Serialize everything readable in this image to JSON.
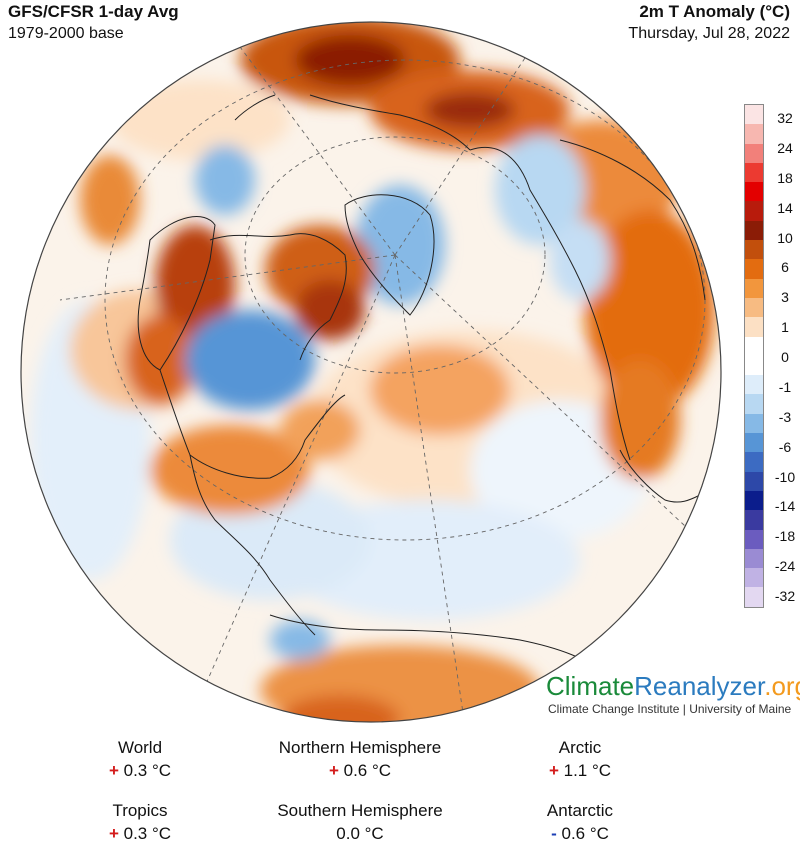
{
  "header": {
    "title_left": "GFS/CFSR 1-day Avg",
    "subtitle_left": "1979-2000 base",
    "title_right": "2m T Anomaly (°C)",
    "subtitle_right": "Thursday, Jul 28, 2022"
  },
  "legend": {
    "ticks": [
      "32",
      "24",
      "18",
      "14",
      "10",
      "6",
      "3",
      "1",
      "0",
      "-1",
      "-3",
      "-6",
      "-10",
      "-14",
      "-18",
      "-24",
      "-32"
    ],
    "colors": [
      "#fbe4e4",
      "#f7b7b0",
      "#f2807a",
      "#ec3a31",
      "#e30000",
      "#b81b0c",
      "#8b1c06",
      "#c24f0c",
      "#e36c10",
      "#f2963d",
      "#f7bb82",
      "#fce0c4",
      "#ffffff",
      "#ffffff",
      "#deedfa",
      "#b8d8f2",
      "#86b9e6",
      "#5795d6",
      "#3c6bc2",
      "#2d48a8",
      "#0b1d8c",
      "#3a3aa0",
      "#6b5cbf",
      "#9a8bd3",
      "#c0b2e4",
      "#e3d8f1"
    ]
  },
  "brand": {
    "part1": "Climate",
    "part2": "Reanalyzer",
    "part3": ".org",
    "sub": "Climate Change Institute | University of Maine"
  },
  "stats": {
    "world": {
      "label": "World",
      "sign": "+",
      "value": "0.3 °C"
    },
    "nh": {
      "label": "Northern Hemisphere",
      "sign": "+",
      "value": "0.6 °C"
    },
    "arctic": {
      "label": "Arctic",
      "sign": "+",
      "value": "1.1 °C"
    },
    "tropics": {
      "label": "Tropics",
      "sign": "+",
      "value": "0.3 °C"
    },
    "sh": {
      "label": "Southern Hemisphere",
      "sign": "",
      "value": "0.0 °C"
    },
    "antarctic": {
      "label": "Antarctic",
      "sign": "-",
      "value": "0.6 °C"
    }
  },
  "colors": {
    "warm_strong": "#8b1c06",
    "warm": "#e36c10",
    "warm_light": "#f7bb82",
    "neutral": "#ffffff",
    "cool_light": "#b8d8f2",
    "cool": "#5795d6",
    "cool_strong": "#2d48a8"
  }
}
